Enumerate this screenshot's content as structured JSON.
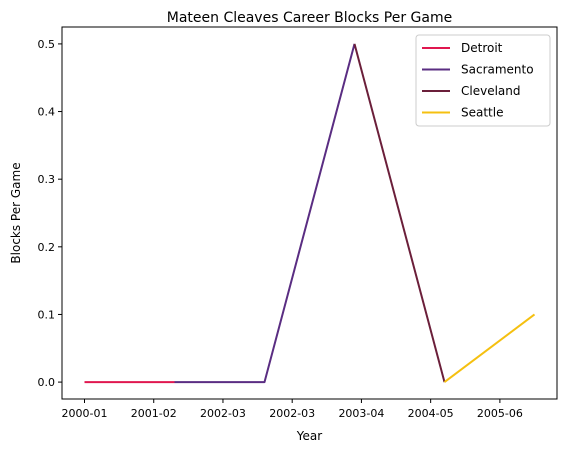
{
  "chart_data": {
    "type": "line",
    "title": "Mateen Cleaves Career Blocks Per Game",
    "xlabel": "Year",
    "ylabel": "Blocks Per Game",
    "x_categories": [
      "2000-01",
      "2001-02",
      "2002-03",
      "2002-03",
      "2003-04",
      "2004-05",
      "2005-06"
    ],
    "ylim": [
      -0.025,
      0.525
    ],
    "yticks": [
      0.0,
      0.1,
      0.2,
      0.3,
      0.4,
      0.5
    ],
    "ytick_labels": [
      "0.0",
      "0.1",
      "0.2",
      "0.3",
      "0.4",
      "0.5"
    ],
    "grid": false,
    "legend_position": "top-right",
    "series": [
      {
        "name": "Detroit",
        "color": "#e0174f",
        "points": [
          {
            "x": 0,
            "y": 0.0
          },
          {
            "x": 1.3,
            "y": 0.0
          }
        ]
      },
      {
        "name": "Sacramento",
        "color": "#5a2d82",
        "points": [
          {
            "x": 1.3,
            "y": 0.0
          },
          {
            "x": 2.6,
            "y": 0.0
          },
          {
            "x": 3.9,
            "y": 0.5
          }
        ]
      },
      {
        "name": "Cleveland",
        "color": "#6b1f3a",
        "points": [
          {
            "x": 3.9,
            "y": 0.5
          },
          {
            "x": 5.2,
            "y": 0.0
          }
        ]
      },
      {
        "name": "Seattle",
        "color": "#f5c010",
        "points": [
          {
            "x": 5.2,
            "y": 0.0
          },
          {
            "x": 6.5,
            "y": 0.1
          }
        ]
      }
    ]
  }
}
